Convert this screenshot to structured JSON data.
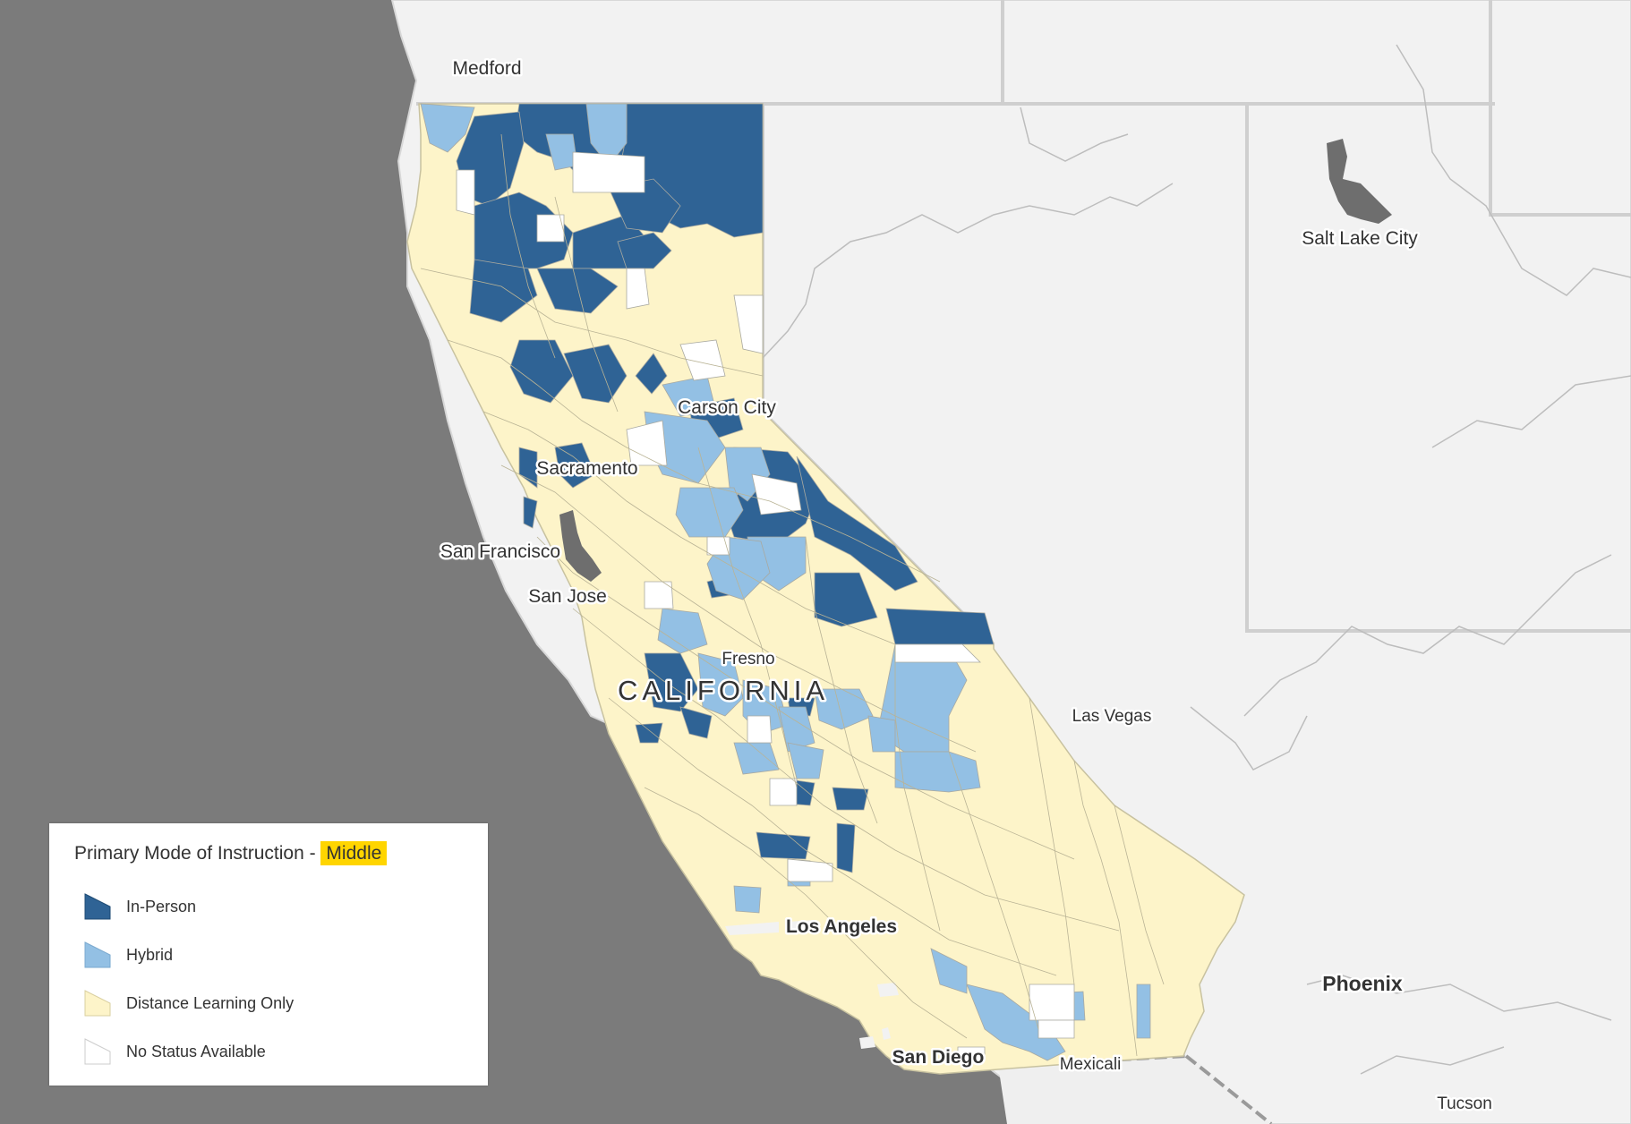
{
  "map": {
    "cities": [
      {
        "name": "Medford",
        "bold": false
      },
      {
        "name": "Salt Lake City",
        "bold": false
      },
      {
        "name": "Carson City",
        "bold": false
      },
      {
        "name": "Sacramento",
        "bold": false
      },
      {
        "name": "San Francisco",
        "bold": false
      },
      {
        "name": "San Jose",
        "bold": false
      },
      {
        "name": "Fresno",
        "bold": false
      },
      {
        "name": "Las Vegas",
        "bold": false
      },
      {
        "name": "Los Angeles",
        "bold": true
      },
      {
        "name": "Phoenix",
        "bold": true
      },
      {
        "name": "San Diego",
        "bold": true
      },
      {
        "name": "Mexicali",
        "bold": false
      },
      {
        "name": "Tucson",
        "bold": false
      }
    ],
    "state_label": "CALIFORNIA",
    "colors": {
      "in_person": "#2f6395",
      "hybrid": "#93c0e4",
      "distance": "#fdf4c9",
      "no_status": "#ffffff",
      "ocean": "#7b7b7b",
      "land": "#f2f2f2"
    }
  },
  "legend": {
    "title_prefix": "Primary Mode of Instruction - ",
    "title_highlight": "Middle",
    "items": [
      {
        "label": "In-Person",
        "color": "#2f6395"
      },
      {
        "label": "Hybrid",
        "color": "#93c0e4"
      },
      {
        "label": "Distance Learning Only",
        "color": "#fdf4c9"
      },
      {
        "label": "No Status Available",
        "color": "#ffffff"
      }
    ]
  }
}
